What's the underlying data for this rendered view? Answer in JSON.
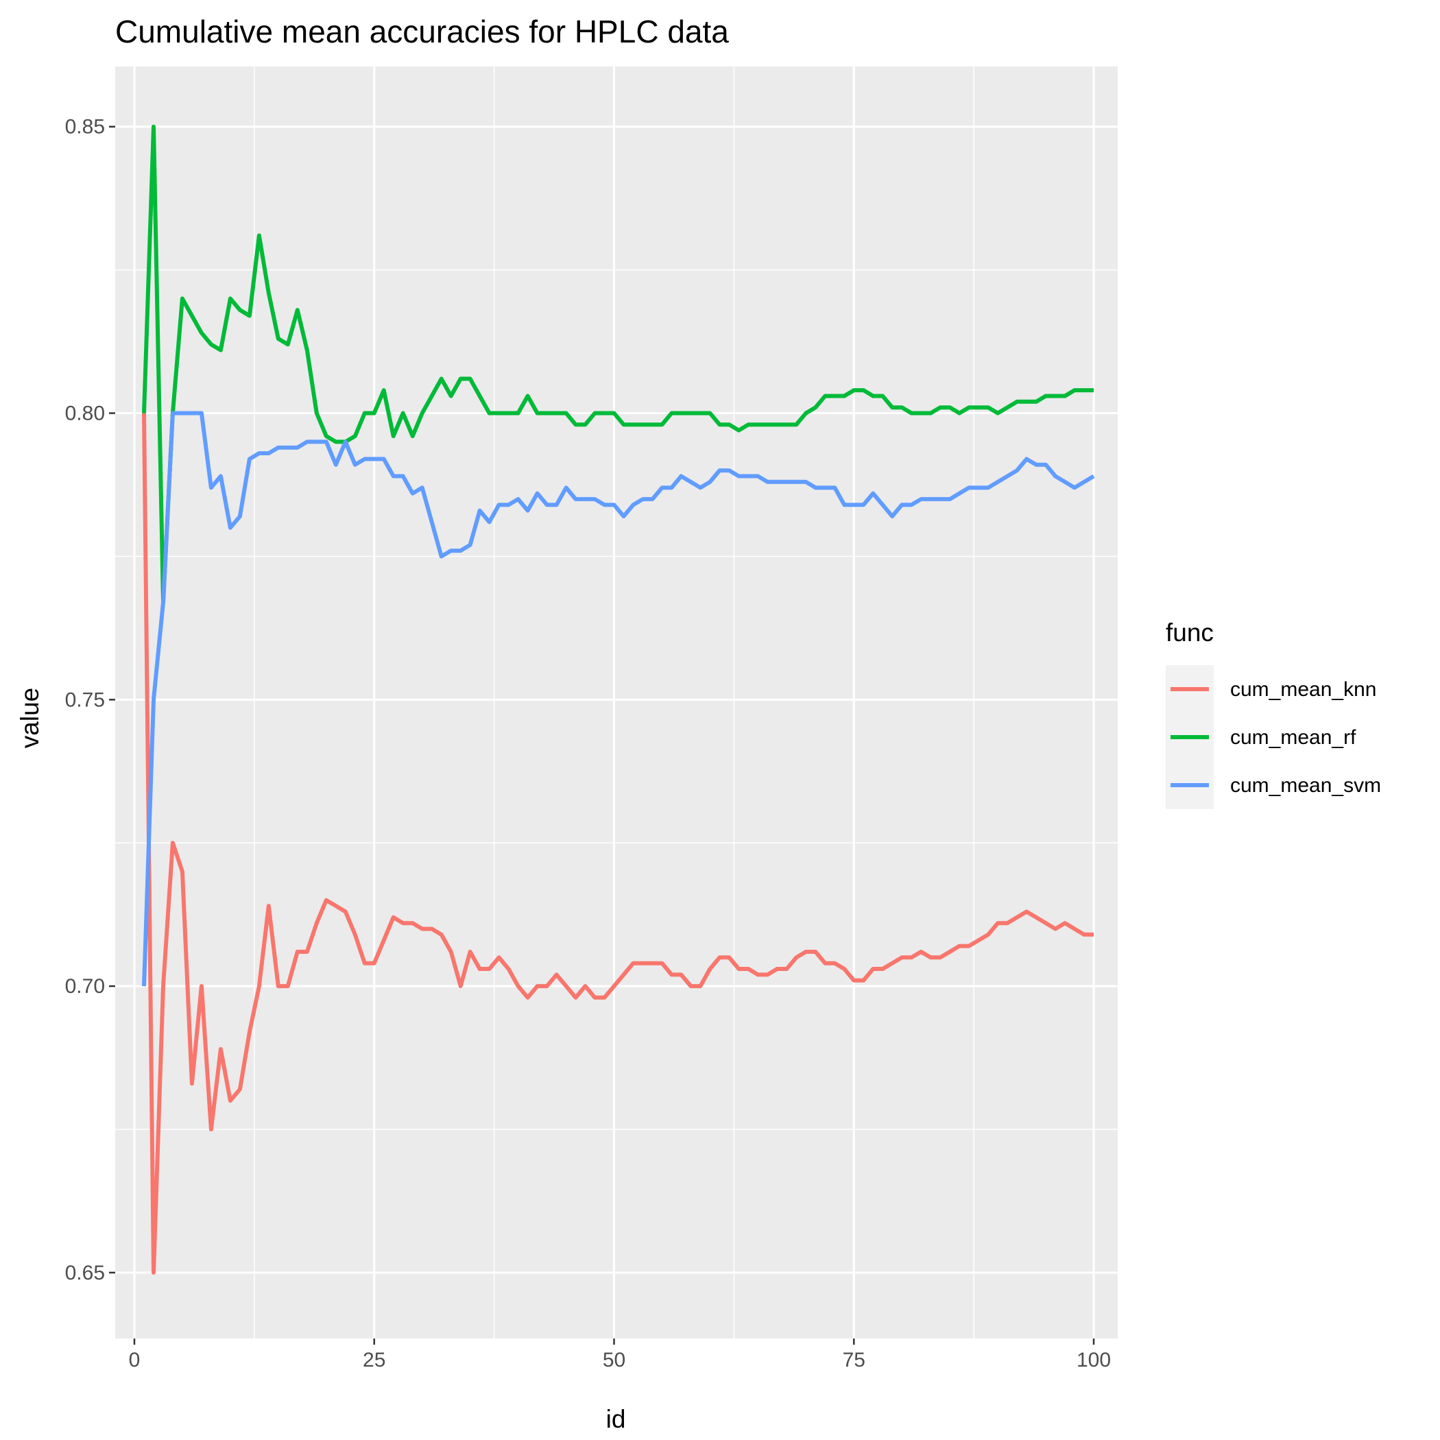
{
  "chart_data": {
    "type": "line",
    "title": "Cumulative mean accuracies for HPLC data",
    "xlabel": "id",
    "ylabel": "value",
    "xlim": [
      -2,
      102.5
    ],
    "ylim": [
      0.6385,
      0.8605
    ],
    "x_ticks": [
      0,
      25,
      50,
      75,
      100
    ],
    "x_tick_labels": [
      "0",
      "25",
      "50",
      "75",
      "100"
    ],
    "y_ticks": [
      0.65,
      0.7,
      0.75,
      0.8,
      0.85
    ],
    "y_tick_labels": [
      "0.65",
      "0.70",
      "0.75",
      "0.80",
      "0.85"
    ],
    "grid": true,
    "legend": {
      "title": "func",
      "position": "right"
    },
    "series": [
      {
        "name": "cum_mean_knn",
        "color": "#F8766D",
        "x": [
          1,
          2,
          3,
          4,
          5,
          6,
          7,
          8,
          9,
          10,
          11,
          12,
          13,
          14,
          15,
          16,
          17,
          18,
          19,
          20,
          21,
          22,
          23,
          24,
          25,
          26,
          27,
          28,
          29,
          30,
          31,
          32,
          33,
          34,
          35,
          36,
          37,
          38,
          39,
          40,
          41,
          42,
          43,
          44,
          45,
          46,
          47,
          48,
          49,
          50,
          51,
          52,
          53,
          54,
          55,
          56,
          57,
          58,
          59,
          60,
          61,
          62,
          63,
          64,
          65,
          66,
          67,
          68,
          69,
          70,
          71,
          72,
          73,
          74,
          75,
          76,
          77,
          78,
          79,
          80,
          81,
          82,
          83,
          84,
          85,
          86,
          87,
          88,
          89,
          90,
          91,
          92,
          93,
          94,
          95,
          96,
          97,
          98,
          99,
          100
        ],
        "y": [
          0.8,
          0.65,
          0.7,
          0.725,
          0.72,
          0.683,
          0.7,
          0.675,
          0.689,
          0.68,
          0.682,
          0.692,
          0.7,
          0.714,
          0.7,
          0.7,
          0.706,
          0.706,
          0.711,
          0.715,
          0.714,
          0.713,
          0.709,
          0.704,
          0.704,
          0.708,
          0.712,
          0.711,
          0.711,
          0.71,
          0.71,
          0.709,
          0.706,
          0.7,
          0.706,
          0.703,
          0.703,
          0.705,
          0.703,
          0.7,
          0.698,
          0.7,
          0.7,
          0.702,
          0.7,
          0.698,
          0.7,
          0.698,
          0.698,
          0.7,
          0.702,
          0.704,
          0.704,
          0.704,
          0.704,
          0.702,
          0.702,
          0.7,
          0.7,
          0.703,
          0.705,
          0.705,
          0.703,
          0.703,
          0.702,
          0.702,
          0.703,
          0.703,
          0.705,
          0.706,
          0.706,
          0.704,
          0.704,
          0.703,
          0.701,
          0.701,
          0.703,
          0.703,
          0.704,
          0.705,
          0.705,
          0.706,
          0.705,
          0.705,
          0.706,
          0.707,
          0.707,
          0.708,
          0.709,
          0.711,
          0.711,
          0.712,
          0.713,
          0.712,
          0.711,
          0.71,
          0.711,
          0.71,
          0.709,
          0.709
        ]
      },
      {
        "name": "cum_mean_rf",
        "color": "#00BA38",
        "x": [
          1,
          2,
          3,
          4,
          5,
          6,
          7,
          8,
          9,
          10,
          11,
          12,
          13,
          14,
          15,
          16,
          17,
          18,
          19,
          20,
          21,
          22,
          23,
          24,
          25,
          26,
          27,
          28,
          29,
          30,
          31,
          32,
          33,
          34,
          35,
          36,
          37,
          38,
          39,
          40,
          41,
          42,
          43,
          44,
          45,
          46,
          47,
          48,
          49,
          50,
          51,
          52,
          53,
          54,
          55,
          56,
          57,
          58,
          59,
          60,
          61,
          62,
          63,
          64,
          65,
          66,
          67,
          68,
          69,
          70,
          71,
          72,
          73,
          74,
          75,
          76,
          77,
          78,
          79,
          80,
          81,
          82,
          83,
          84,
          85,
          86,
          87,
          88,
          89,
          90,
          91,
          92,
          93,
          94,
          95,
          96,
          97,
          98,
          99,
          100
        ],
        "y": [
          0.8,
          0.85,
          0.767,
          0.8,
          0.82,
          0.817,
          0.814,
          0.812,
          0.811,
          0.82,
          0.818,
          0.817,
          0.831,
          0.821,
          0.813,
          0.812,
          0.818,
          0.811,
          0.8,
          0.796,
          0.795,
          0.795,
          0.796,
          0.8,
          0.8,
          0.804,
          0.796,
          0.8,
          0.796,
          0.8,
          0.803,
          0.806,
          0.803,
          0.806,
          0.806,
          0.803,
          0.8,
          0.8,
          0.8,
          0.8,
          0.803,
          0.8,
          0.8,
          0.8,
          0.8,
          0.798,
          0.798,
          0.8,
          0.8,
          0.8,
          0.798,
          0.798,
          0.798,
          0.798,
          0.798,
          0.8,
          0.8,
          0.8,
          0.8,
          0.8,
          0.798,
          0.798,
          0.797,
          0.798,
          0.798,
          0.798,
          0.798,
          0.798,
          0.798,
          0.8,
          0.801,
          0.803,
          0.803,
          0.803,
          0.804,
          0.804,
          0.803,
          0.803,
          0.801,
          0.801,
          0.8,
          0.8,
          0.8,
          0.801,
          0.801,
          0.8,
          0.801,
          0.801,
          0.801,
          0.8,
          0.801,
          0.802,
          0.802,
          0.802,
          0.803,
          0.803,
          0.803,
          0.804,
          0.804,
          0.804
        ]
      },
      {
        "name": "cum_mean_svm",
        "color": "#619CFF",
        "x": [
          1,
          2,
          3,
          4,
          5,
          6,
          7,
          8,
          9,
          10,
          11,
          12,
          13,
          14,
          15,
          16,
          17,
          18,
          19,
          20,
          21,
          22,
          23,
          24,
          25,
          26,
          27,
          28,
          29,
          30,
          31,
          32,
          33,
          34,
          35,
          36,
          37,
          38,
          39,
          40,
          41,
          42,
          43,
          44,
          45,
          46,
          47,
          48,
          49,
          50,
          51,
          52,
          53,
          54,
          55,
          56,
          57,
          58,
          59,
          60,
          61,
          62,
          63,
          64,
          65,
          66,
          67,
          68,
          69,
          70,
          71,
          72,
          73,
          74,
          75,
          76,
          77,
          78,
          79,
          80,
          81,
          82,
          83,
          84,
          85,
          86,
          87,
          88,
          89,
          90,
          91,
          92,
          93,
          94,
          95,
          96,
          97,
          98,
          99,
          100
        ],
        "y": [
          0.7,
          0.75,
          0.767,
          0.8,
          0.8,
          0.8,
          0.8,
          0.787,
          0.789,
          0.78,
          0.782,
          0.792,
          0.793,
          0.793,
          0.794,
          0.794,
          0.794,
          0.795,
          0.795,
          0.795,
          0.791,
          0.795,
          0.791,
          0.792,
          0.792,
          0.792,
          0.789,
          0.789,
          0.786,
          0.787,
          0.781,
          0.775,
          0.776,
          0.776,
          0.777,
          0.783,
          0.781,
          0.784,
          0.784,
          0.785,
          0.783,
          0.786,
          0.784,
          0.784,
          0.787,
          0.785,
          0.785,
          0.785,
          0.784,
          0.784,
          0.782,
          0.784,
          0.785,
          0.785,
          0.787,
          0.787,
          0.789,
          0.788,
          0.787,
          0.788,
          0.79,
          0.79,
          0.789,
          0.789,
          0.789,
          0.788,
          0.788,
          0.788,
          0.788,
          0.788,
          0.787,
          0.787,
          0.787,
          0.784,
          0.784,
          0.784,
          0.786,
          0.784,
          0.782,
          0.784,
          0.784,
          0.785,
          0.785,
          0.785,
          0.785,
          0.786,
          0.787,
          0.787,
          0.787,
          0.788,
          0.789,
          0.79,
          0.792,
          0.791,
          0.791,
          0.789,
          0.788,
          0.787,
          0.788,
          0.789
        ]
      }
    ]
  }
}
